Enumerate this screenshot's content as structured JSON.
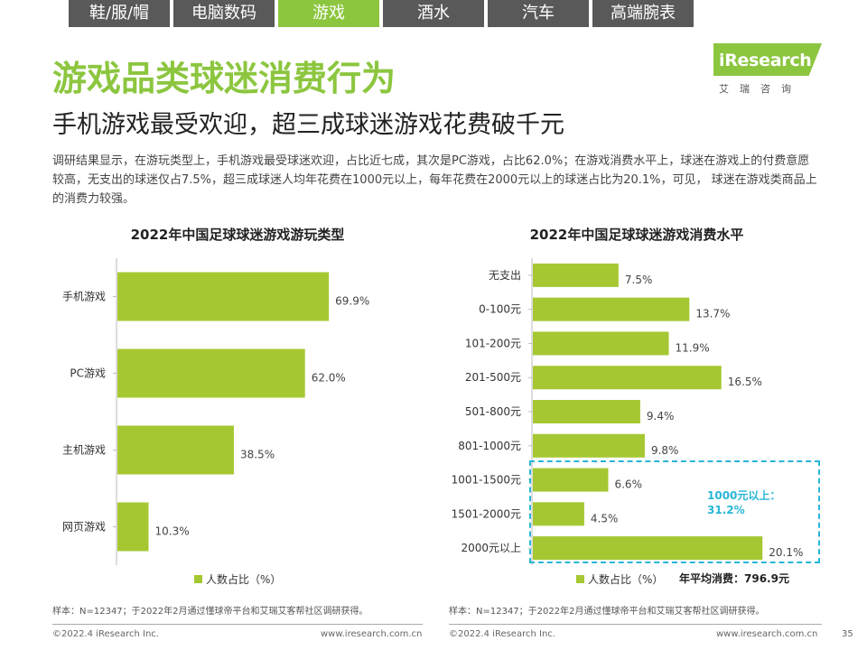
{
  "tabs": [
    {
      "label": "鞋/服/帽",
      "active": false
    },
    {
      "label": "电脑数码",
      "active": false
    },
    {
      "label": "游戏",
      "active": true
    },
    {
      "label": "酒水",
      "active": false
    },
    {
      "label": "汽车",
      "active": false
    },
    {
      "label": "高端腕表",
      "active": false
    }
  ],
  "logo": {
    "text": "iResearch",
    "sub": "艾瑞咨询"
  },
  "header": {
    "title": "游戏品类球迷消费行为",
    "subtitle": "手机游戏最受欢迎，超三成球迷游戏花费破千元",
    "description": "调研结果显示，在游玩类型上，手机游戏最受球迷欢迎，占比近七成，其次是PC游戏，占比62.0%；在游戏消费水平上，球迷在游戏上的付费意愿较高，无支出的球迷仅占7.5%，超三成球迷人均年花费在1000元以上，每年花费在2000元以上的球迷占比为20.1%，可见， 球迷在游戏类商品上的消费力较强。"
  },
  "chart_data": [
    {
      "type": "bar",
      "orientation": "horizontal",
      "title": "2022年中国足球球迷游戏游玩类型",
      "categories": [
        "手机游戏",
        "PC游戏",
        "主机游戏",
        "网页游戏"
      ],
      "values": [
        69.9,
        62.0,
        38.5,
        10.3
      ],
      "value_labels": [
        "69.9%",
        "62.0%",
        "38.5%",
        "10.3%"
      ],
      "legend": "人数占比（%）",
      "xlim": [
        0,
        100
      ],
      "color": "#a5c832"
    },
    {
      "type": "bar",
      "orientation": "horizontal",
      "title": "2022年中国足球球迷游戏消费水平",
      "categories": [
        "无支出",
        "0-100元",
        "101-200元",
        "201-500元",
        "501-800元",
        "801-1000元",
        "1001-1500元",
        "1501-2000元",
        "2000元以上"
      ],
      "values": [
        7.5,
        13.7,
        11.9,
        16.5,
        9.4,
        9.8,
        6.6,
        4.5,
        20.1
      ],
      "value_labels": [
        "7.5%",
        "13.7%",
        "11.9%",
        "16.5%",
        "9.4%",
        "9.8%",
        "6.6%",
        "4.5%",
        "20.1%"
      ],
      "legend": "人数占比（%）",
      "xlim": [
        0,
        21.5
      ],
      "color": "#a5c832",
      "annotation": "1000元以上：31.2%",
      "annotation_lines": [
        "1000元以上：",
        "31.2%"
      ],
      "average_note": "年平均消费：796.9元"
    }
  ],
  "sources": {
    "left": "样本：N=12347；于2022年2月通过懂球帝平台和艾瑞艾客帮社区调研获得。",
    "right": "样本：N=12347；于2022年2月通过懂球帝平台和艾瑞艾客帮社区调研获得。"
  },
  "footer": {
    "copyright": "©2022.4 iResearch Inc.",
    "url": "www.iresearch.com.cn",
    "page": "35"
  },
  "colors": {
    "accent": "#8cc63f",
    "bar": "#a5c832",
    "highlight": "#29b6d6",
    "tab": "#595959"
  }
}
